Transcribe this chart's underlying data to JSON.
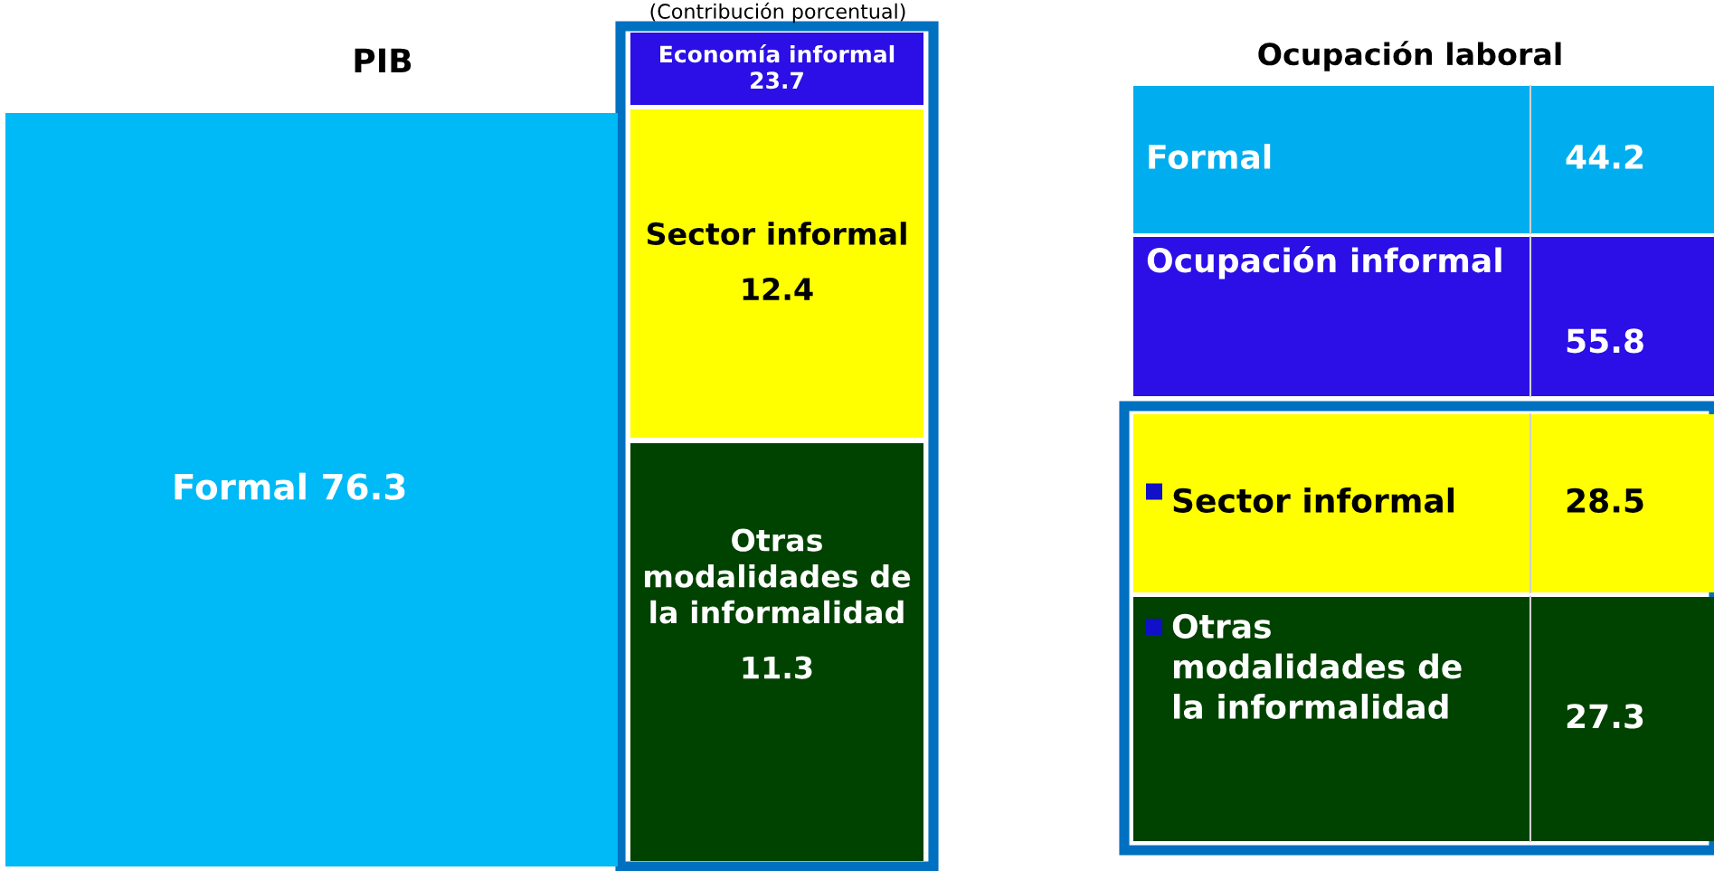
{
  "chart_data": [
    {
      "type": "other",
      "title": "PIB",
      "subtitle": "(Contribución porcentual)",
      "categories": [
        "Formal",
        "Economía informal",
        "Sector informal",
        "Otras modalidades de la informalidad"
      ],
      "values": [
        76.3,
        23.7,
        12.4,
        11.3
      ],
      "colors": [
        "#00b9f7",
        "#2b0fe6",
        "#ffff00",
        "#004200"
      ],
      "data_labels": true
    },
    {
      "type": "other",
      "title": "Ocupación laboral",
      "categories": [
        "Formal",
        "Ocupación informal",
        "Sector informal",
        "Otras modalidades de la informalidad"
      ],
      "values": [
        44.2,
        55.8,
        28.5,
        27.3
      ],
      "colors": [
        "#00aeef",
        "#2b0fe6",
        "#ffff00",
        "#004200"
      ],
      "data_labels": true
    }
  ]
}
